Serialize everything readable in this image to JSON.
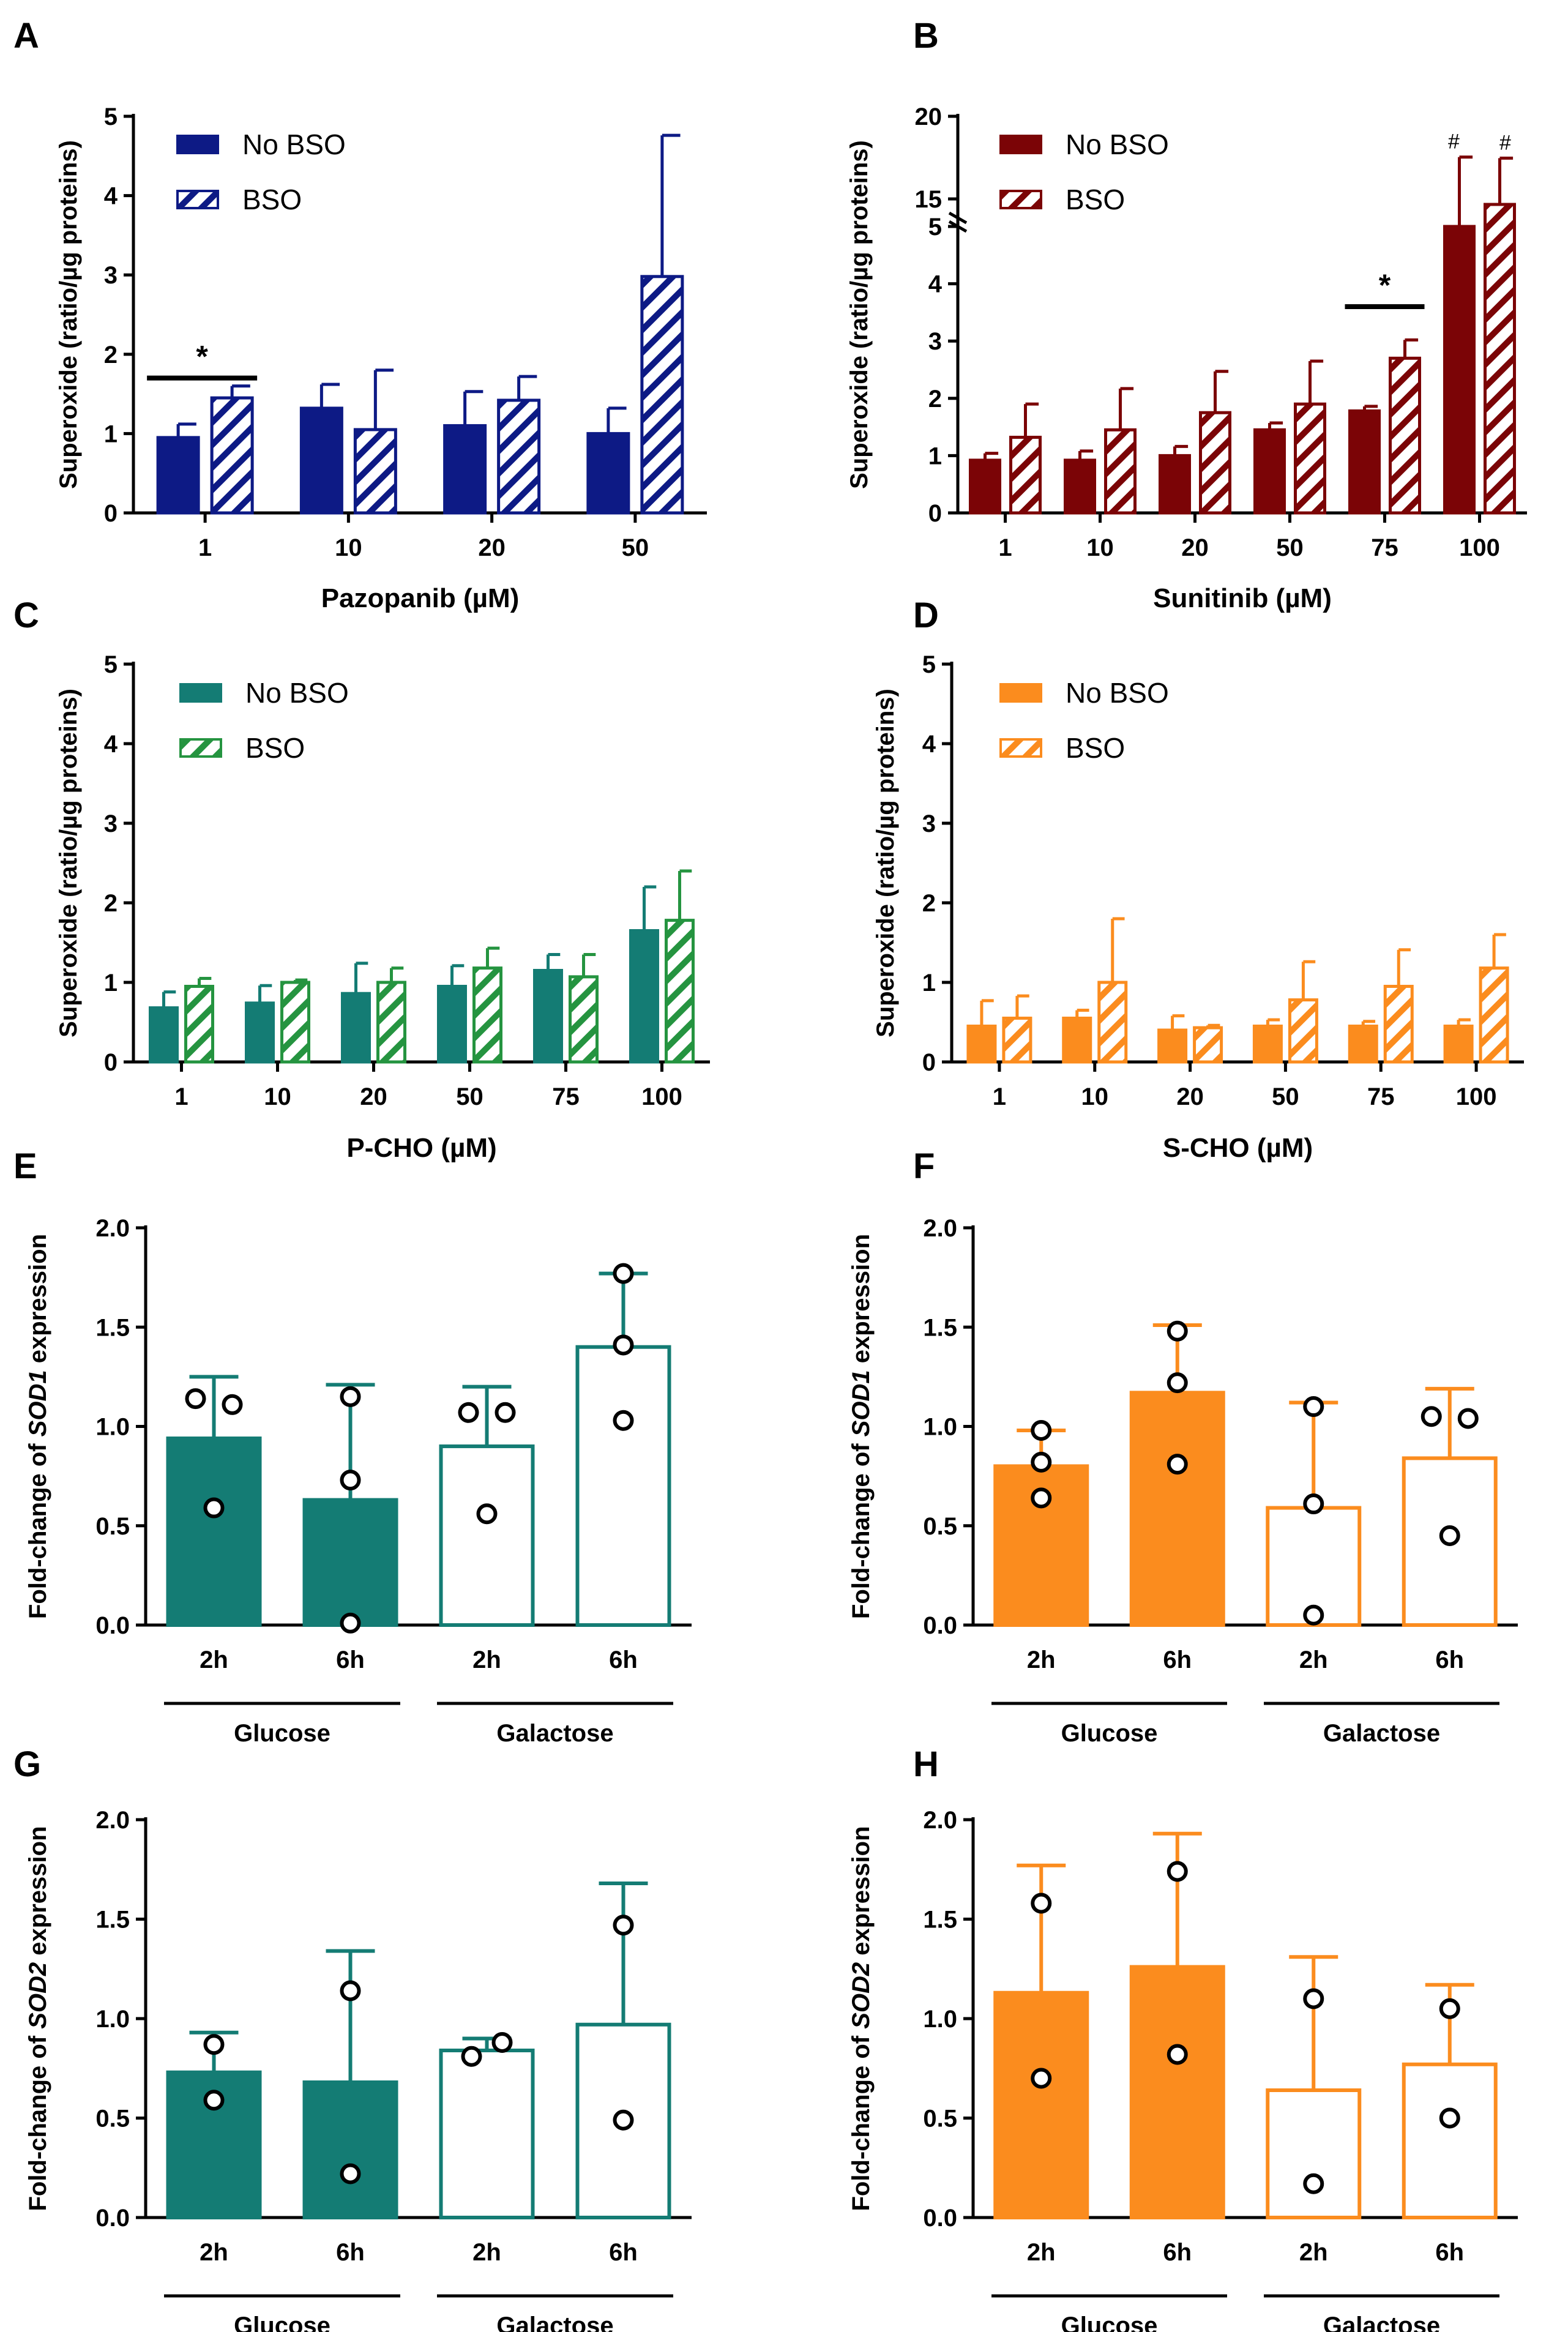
{
  "figure": {
    "panels": [
      "A",
      "B",
      "C",
      "D",
      "E",
      "F",
      "G",
      "H"
    ]
  },
  "chart_data": [
    {
      "panel": "A",
      "type": "bar",
      "xlabel": "Pazopanib (µM)",
      "ylabel": "Superoxide (ratio/µg proteins)",
      "ylim": [
        0,
        5
      ],
      "yticks": [
        "0",
        "1",
        "2",
        "3",
        "4",
        "5"
      ],
      "categories": [
        "1",
        "10",
        "20",
        "50"
      ],
      "series": [
        {
          "name": "No BSO",
          "values": [
            0.95,
            1.32,
            1.1,
            1.0
          ],
          "errors": [
            0.17,
            0.3,
            0.43,
            0.32
          ]
        },
        {
          "name": "BSO",
          "values": [
            1.45,
            1.05,
            1.42,
            2.98
          ],
          "errors": [
            0.15,
            0.75,
            0.3,
            1.78
          ]
        }
      ],
      "annotations": [
        {
          "text": "*",
          "category_index": 0
        }
      ],
      "colors": {
        "main": "#0d1a85"
      }
    },
    {
      "panel": "B",
      "type": "bar",
      "xlabel": "Sunitinib (µM)",
      "ylabel": "Superoxide (ratio/µg proteins)",
      "ylim": [
        0,
        20
      ],
      "axis_break": [
        5,
        5
      ],
      "yticks": [
        "0",
        "1",
        "2",
        "3",
        "4",
        "5",
        "15",
        "20"
      ],
      "categories": [
        "1",
        "10",
        "20",
        "50",
        "75",
        "100"
      ],
      "series": [
        {
          "name": "No BSO",
          "values": [
            0.92,
            0.92,
            1.0,
            1.45,
            1.78,
            5.8
          ],
          "errors": [
            0.12,
            0.16,
            0.16,
            0.12,
            0.08,
            10.5
          ]
        },
        {
          "name": "BSO",
          "values": [
            1.32,
            1.45,
            1.75,
            1.9,
            2.7,
            12.0
          ],
          "errors": [
            0.58,
            0.72,
            0.72,
            0.75,
            0.32,
            4.2
          ]
        }
      ],
      "annotations": [
        {
          "text": "*",
          "category_index": 4
        },
        {
          "text": "#",
          "category_index": 5,
          "series_index": 0
        },
        {
          "text": "#",
          "category_index": 5,
          "series_index": 1
        }
      ],
      "colors": {
        "main": "#7b0406"
      }
    },
    {
      "panel": "C",
      "type": "bar",
      "xlabel": "P-CHO (µM)",
      "ylabel": "Superoxide (ratio/µg proteins)",
      "ylim": [
        0,
        5
      ],
      "yticks": [
        "0",
        "1",
        "2",
        "3",
        "4",
        "5"
      ],
      "categories": [
        "1",
        "10",
        "20",
        "50",
        "75",
        "100"
      ],
      "series": [
        {
          "name": "No BSO",
          "values": [
            0.68,
            0.74,
            0.86,
            0.95,
            1.15,
            1.65
          ],
          "errors": [
            0.2,
            0.22,
            0.38,
            0.26,
            0.2,
            0.55
          ]
        },
        {
          "name": "BSO",
          "values": [
            0.95,
            1.0,
            1.0,
            1.18,
            1.07,
            1.78
          ],
          "errors": [
            0.1,
            0.03,
            0.18,
            0.25,
            0.28,
            0.62
          ]
        }
      ],
      "colors": {
        "no_bso": "#147c74",
        "bso": "#259440"
      }
    },
    {
      "panel": "D",
      "type": "bar",
      "xlabel": "S-CHO (µM)",
      "ylabel": "Superoxide (ratio/µg proteins)",
      "ylim": [
        0,
        5
      ],
      "yticks": [
        "0",
        "1",
        "2",
        "3",
        "4",
        "5"
      ],
      "categories": [
        "1",
        "10",
        "20",
        "50",
        "75",
        "100"
      ],
      "series": [
        {
          "name": "No BSO",
          "values": [
            0.45,
            0.55,
            0.4,
            0.45,
            0.45,
            0.45
          ],
          "errors": [
            0.32,
            0.1,
            0.18,
            0.08,
            0.06,
            0.08
          ]
        },
        {
          "name": "BSO",
          "values": [
            0.55,
            1.0,
            0.43,
            0.78,
            0.95,
            1.18
          ],
          "errors": [
            0.28,
            0.8,
            0.03,
            0.48,
            0.46,
            0.42
          ]
        }
      ],
      "colors": {
        "main": "#fb8c1e"
      }
    },
    {
      "panel": "E",
      "type": "bar",
      "ylabel_parts": [
        "Fold-change of ",
        "SOD1",
        " expression"
      ],
      "ylim": [
        0,
        2
      ],
      "yticks": [
        "0.0",
        "0.5",
        "1.0",
        "1.5",
        "2.0"
      ],
      "categories": [
        "2h",
        "6h",
        "2h",
        "6h"
      ],
      "groups": [
        "Glucose",
        "Galactose"
      ],
      "values": [
        0.94,
        0.63,
        0.9,
        1.4
      ],
      "errors": [
        0.31,
        0.58,
        0.3,
        0.37
      ],
      "filled": [
        true,
        true,
        false,
        false
      ],
      "points": [
        [
          1.14,
          1.11,
          0.59
        ],
        [
          1.15,
          0.73,
          0.01
        ],
        [
          1.07,
          1.07,
          0.56
        ],
        [
          1.77,
          1.41,
          1.03
        ]
      ],
      "colors": {
        "main": "#147c74"
      }
    },
    {
      "panel": "F",
      "type": "bar",
      "ylabel_parts": [
        "Fold-change of ",
        "SOD1",
        " expression"
      ],
      "ylim": [
        0,
        2
      ],
      "yticks": [
        "0.0",
        "0.5",
        "1.0",
        "1.5",
        "2.0"
      ],
      "categories": [
        "2h",
        "6h",
        "2h",
        "6h"
      ],
      "groups": [
        "Glucose",
        "Galactose"
      ],
      "values": [
        0.8,
        1.17,
        0.59,
        0.84
      ],
      "errors": [
        0.18,
        0.34,
        0.53,
        0.35
      ],
      "filled": [
        true,
        true,
        false,
        false
      ],
      "points": [
        [
          0.98,
          0.82,
          0.64
        ],
        [
          1.48,
          1.22,
          0.81
        ],
        [
          1.1,
          0.61,
          0.05
        ],
        [
          1.05,
          1.04,
          0.45
        ]
      ],
      "colors": {
        "main": "#fb8c1e"
      }
    },
    {
      "panel": "G",
      "type": "bar",
      "ylabel_parts": [
        "Fold-change of ",
        "SOD2",
        " expression"
      ],
      "ylim": [
        0,
        2
      ],
      "yticks": [
        "0.0",
        "0.5",
        "1.0",
        "1.5",
        "2.0"
      ],
      "categories": [
        "2h",
        "6h",
        "2h",
        "6h"
      ],
      "groups": [
        "Glucose",
        "Galactose"
      ],
      "values": [
        0.73,
        0.68,
        0.84,
        0.97
      ],
      "errors": [
        0.2,
        0.66,
        0.06,
        0.71
      ],
      "filled": [
        true,
        true,
        false,
        false
      ],
      "points": [
        [
          0.87,
          0.59
        ],
        [
          1.14,
          0.22
        ],
        [
          0.81,
          0.88
        ],
        [
          1.47,
          0.49
        ]
      ],
      "colors": {
        "main": "#147c74"
      }
    },
    {
      "panel": "H",
      "type": "bar",
      "ylabel_parts": [
        "Fold-change of ",
        "SOD2",
        " expression"
      ],
      "ylim": [
        0,
        2
      ],
      "yticks": [
        "0.0",
        "0.5",
        "1.0",
        "1.5",
        "2.0"
      ],
      "categories": [
        "2h",
        "6h",
        "2h",
        "6h"
      ],
      "groups": [
        "Glucose",
        "Galactose"
      ],
      "values": [
        1.13,
        1.26,
        0.64,
        0.77
      ],
      "errors": [
        0.64,
        0.67,
        0.67,
        0.4
      ],
      "filled": [
        true,
        true,
        false,
        false
      ],
      "points": [
        [
          1.58,
          0.7
        ],
        [
          1.74,
          0.82
        ],
        [
          1.1,
          0.17
        ],
        [
          1.05,
          0.5
        ]
      ],
      "colors": {
        "main": "#fb8c1e"
      }
    }
  ]
}
